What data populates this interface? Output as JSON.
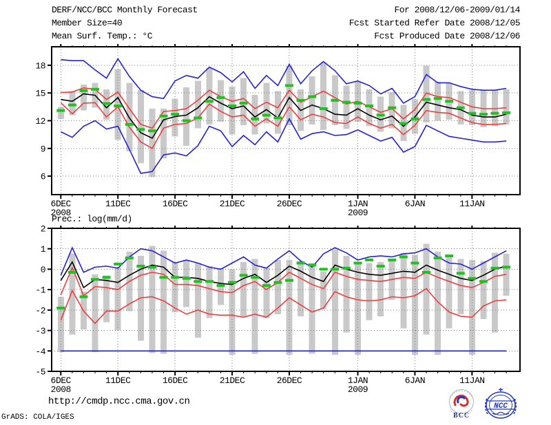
{
  "header": {
    "title": "DERF/NCC/BCC Monthly Forecast",
    "member_size": "Member Size=40",
    "temp_label": "Mean Surf. Temp.: °C",
    "for_range": "For 2008/12/06-2009/01/14",
    "refer_date": "Fcst Started Refer Date 2008/12/05",
    "produced_date": "Fcst Produced Date 2008/12/06"
  },
  "footer": {
    "url": "http://cmdp.ncc.cma.gov.cn",
    "grads_credit": "GrADS: COLA/IGES",
    "bcc_text": "BCC",
    "ncc_text": "NCC"
  },
  "colors": {
    "blue": "#2020dd",
    "red": "#f23c3c",
    "black": "#000000",
    "green": "#22c122",
    "bar": "#c9c9c9",
    "grid": "#7a7a7a",
    "frame": "#000000",
    "logo_blue": "#2238c0",
    "logo_red": "#e02a2a",
    "logo_navy": "#1a2f7a"
  },
  "chart_data": [
    {
      "type": "line",
      "title": "Mean Surf. Temp.: °C",
      "ylabel": "",
      "xlabel": "",
      "grid": true,
      "legend_position": "none",
      "ylim": [
        4,
        20
      ],
      "yticks": [
        6,
        9,
        12,
        15,
        18
      ],
      "xticks": [
        {
          "day": 0,
          "label": "6DEC",
          "year": "2008"
        },
        {
          "day": 5,
          "label": "11DEC"
        },
        {
          "day": 10,
          "label": "16DEC"
        },
        {
          "day": 15,
          "label": "21DEC"
        },
        {
          "day": 20,
          "label": "26DEC"
        },
        {
          "day": 26,
          "label": "1JAN",
          "year": "2009"
        },
        {
          "day": 31,
          "label": "6JAN"
        },
        {
          "day": 36,
          "label": "11JAN"
        }
      ],
      "series": [
        {
          "name": "ensemble-max",
          "color": "blue",
          "values": [
            18.6,
            18.5,
            18.5,
            17.5,
            16.6,
            18.7,
            16.8,
            15.3,
            14.6,
            14.4,
            16.3,
            16.9,
            16.6,
            17.8,
            17.2,
            16.2,
            17.3,
            15.5,
            16.9,
            15.8,
            18.1,
            16.0,
            17.4,
            18.4,
            17.4,
            16.0,
            16.3,
            15.8,
            14.9,
            15.5,
            13.9,
            14.6,
            17.0,
            16.1,
            16.1,
            15.7,
            15.4,
            15.3,
            15.3,
            15.5
          ]
        },
        {
          "name": "ensemble-min",
          "color": "blue",
          "values": [
            10.8,
            10.2,
            11.4,
            12.0,
            11.1,
            11.4,
            8.9,
            6.3,
            6.5,
            8.3,
            8.5,
            8.2,
            9.3,
            11.4,
            10.9,
            9.2,
            10.4,
            9.4,
            10.8,
            9.7,
            12.2,
            10.0,
            10.6,
            10.8,
            10.4,
            10.5,
            11.0,
            10.4,
            9.8,
            10.2,
            8.6,
            9.2,
            11.5,
            10.9,
            10.3,
            10.1,
            9.9,
            9.7,
            9.7,
            9.8
          ]
        },
        {
          "name": "upper-quartile",
          "color": "red",
          "values": [
            15.05,
            15.1,
            15.55,
            15.4,
            14.3,
            15.1,
            13.3,
            11.6,
            11.2,
            13.0,
            13.1,
            13.3,
            14.2,
            15.3,
            14.6,
            14.1,
            14.4,
            13.3,
            14.0,
            13.4,
            15.3,
            14.0,
            14.6,
            15.2,
            14.5,
            13.8,
            14.1,
            13.5,
            12.9,
            13.3,
            12.2,
            13.2,
            15.0,
            14.6,
            14.5,
            14.0,
            13.5,
            13.3,
            13.3,
            13.4
          ]
        },
        {
          "name": "lower-quartile",
          "color": "red",
          "values": [
            13.95,
            12.75,
            13.9,
            13.95,
            12.4,
            13.5,
            11.3,
            9.7,
            9.0,
            11.2,
            11.6,
            11.7,
            12.3,
            13.8,
            13.0,
            12.4,
            12.6,
            11.4,
            12.2,
            11.4,
            13.5,
            12.1,
            12.7,
            12.4,
            11.8,
            11.7,
            12.4,
            11.7,
            11.2,
            11.6,
            10.5,
            11.5,
            13.1,
            12.9,
            12.8,
            12.3,
            11.8,
            11.6,
            11.6,
            11.7
          ]
        },
        {
          "name": "ensemble-median",
          "color": "black",
          "values": [
            14.3,
            14.1,
            14.9,
            14.75,
            13.4,
            14.5,
            12.3,
            10.7,
            10.1,
            12.1,
            12.45,
            12.6,
            13.4,
            14.6,
            13.9,
            13.3,
            13.6,
            12.4,
            13.2,
            12.3,
            14.5,
            13.1,
            13.7,
            13.3,
            12.7,
            12.6,
            13.3,
            12.6,
            12.1,
            12.5,
            11.4,
            12.4,
            14.0,
            13.7,
            13.4,
            13.2,
            12.6,
            12.4,
            12.4,
            12.7
          ]
        }
      ],
      "bars": {
        "name": "ensemble-spread",
        "low": [
          12.2,
          12.6,
          13.1,
          13.4,
          12.1,
          9.9,
          8.7,
          7.4,
          5.9,
          7.9,
          10.3,
          9.3,
          11.2,
          11.6,
          11.9,
          10.5,
          11.5,
          10.5,
          11.7,
          10.6,
          11.5,
          10.9,
          11.6,
          11.0,
          11.5,
          11.1,
          11.9,
          11.4,
          10.8,
          11.2,
          9.8,
          10.6,
          11.8,
          12.0,
          12.1,
          11.6,
          11.5,
          11.3,
          11.4,
          11.6
        ],
        "high": [
          13.5,
          15.2,
          15.9,
          16.1,
          15.4,
          17.6,
          16.1,
          15.3,
          13.3,
          13.3,
          14.4,
          15.6,
          16.3,
          17.7,
          16.4,
          15.7,
          16.6,
          14.8,
          16.1,
          15.2,
          17.9,
          15.4,
          16.8,
          18.3,
          16.9,
          15.8,
          16.2,
          15.4,
          14.6,
          15.1,
          13.7,
          14.3,
          17.95,
          16.2,
          16.1,
          15.2,
          15.3,
          15.3,
          15.3,
          15.4
        ]
      },
      "dashes": {
        "name": "observation",
        "values": [
          13.1,
          13.7,
          15.25,
          15.4,
          13.85,
          13.6,
          11.6,
          11.05,
          10.9,
          12.5,
          12.7,
          12.0,
          12.3,
          14.1,
          14.5,
          13.6,
          13.9,
          12.2,
          12.6,
          12.3,
          15.8,
          14.2,
          14.6,
          13.3,
          14.2,
          14.0,
          13.9,
          13.6,
          12.6,
          13.4,
          11.7,
          12.2,
          14.3,
          14.4,
          14.1,
          13.4,
          12.8,
          12.7,
          12.8,
          12.85
        ]
      }
    },
    {
      "type": "line",
      "title": "Prec.: log(mm/d)",
      "ylabel": "",
      "xlabel": "",
      "grid": true,
      "legend_position": "none",
      "ylim": [
        -5,
        2
      ],
      "yticks": [
        2,
        1,
        0,
        -1,
        -2,
        -3,
        -4,
        -5
      ],
      "xticks": [
        {
          "day": 0,
          "label": "6DEC",
          "year": "2008"
        },
        {
          "day": 5,
          "label": "11DEC"
        },
        {
          "day": 10,
          "label": "16DEC"
        },
        {
          "day": 15,
          "label": "21DEC"
        },
        {
          "day": 20,
          "label": "26DEC"
        },
        {
          "day": 26,
          "label": "1JAN",
          "year": "2009"
        },
        {
          "day": 31,
          "label": "6JAN"
        },
        {
          "day": 36,
          "label": "11JAN"
        }
      ],
      "series": [
        {
          "name": "ensemble-max",
          "color": "blue",
          "values": [
            -0.3,
            1.05,
            -0.15,
            0.1,
            0.15,
            0.05,
            0.6,
            1.0,
            0.9,
            0.6,
            0.3,
            0.45,
            0.3,
            0.1,
            0.0,
            0.3,
            0.6,
            0.2,
            0.05,
            0.5,
            0.9,
            0.4,
            0.1,
            0.75,
            1.05,
            0.8,
            0.45,
            0.6,
            0.65,
            0.6,
            0.75,
            0.8,
            1.0,
            0.6,
            0.3,
            0.25,
            0.0,
            0.3,
            0.6,
            0.9
          ]
        },
        {
          "name": "ensemble-min",
          "color": "blue",
          "values": [
            -4.0,
            -4.0,
            -4.0,
            -4.0,
            -4.0,
            -4.0,
            -4.0,
            -4.0,
            -4.0,
            -4.0,
            -4.0,
            -4.0,
            -4.0,
            -4.0,
            -4.0,
            -4.0,
            -4.0,
            -4.0,
            -4.0,
            -4.0,
            -4.0,
            -4.0,
            -4.0,
            -4.0,
            -4.0,
            -4.0,
            -4.0,
            -4.0,
            -4.0,
            -4.0,
            -4.0,
            -4.0,
            -4.0,
            -4.0,
            -4.0,
            -4.0,
            -4.0,
            -4.0,
            -4.0,
            -4.0
          ]
        },
        {
          "name": "upper-quartile",
          "color": "red",
          "values": [
            -1.25,
            0.08,
            -1.3,
            -0.85,
            -0.9,
            -1.0,
            -0.6,
            -0.3,
            -0.15,
            -0.25,
            -0.75,
            -0.75,
            -0.8,
            -0.95,
            -1.1,
            -1.15,
            -0.8,
            -0.6,
            -1.0,
            -0.65,
            -0.15,
            -0.45,
            -0.75,
            -0.95,
            -0.15,
            -0.35,
            -0.5,
            -0.55,
            -0.6,
            -0.5,
            -0.4,
            -0.45,
            -0.15,
            -0.4,
            -0.6,
            -0.8,
            -0.9,
            -0.65,
            -0.35,
            -0.25
          ]
        },
        {
          "name": "lower-quartile",
          "color": "red",
          "values": [
            -2.5,
            -1.05,
            -2.05,
            -2.65,
            -2.05,
            -2.05,
            -1.7,
            -1.4,
            -1.35,
            -1.55,
            -1.9,
            -2.2,
            -2.0,
            -2.2,
            -2.25,
            -2.25,
            -2.35,
            -2.2,
            -2.35,
            -1.9,
            -1.4,
            -1.75,
            -2.1,
            -1.9,
            -1.1,
            -1.35,
            -1.5,
            -1.55,
            -1.5,
            -1.35,
            -1.4,
            -1.3,
            -0.95,
            -1.6,
            -2.1,
            -2.3,
            -2.35,
            -1.8,
            -1.55,
            -1.5
          ]
        },
        {
          "name": "ensemble-median",
          "color": "black",
          "values": [
            -0.55,
            0.35,
            -0.9,
            -0.5,
            -0.55,
            -0.65,
            -0.3,
            0.0,
            0.2,
            0.1,
            -0.4,
            -0.4,
            -0.45,
            -0.6,
            -0.7,
            -0.75,
            -0.45,
            -0.25,
            -0.65,
            -0.3,
            0.15,
            -0.1,
            -0.4,
            -0.6,
            0.2,
            0.0,
            -0.15,
            -0.25,
            -0.3,
            -0.2,
            -0.1,
            -0.15,
            0.2,
            -0.05,
            -0.25,
            -0.45,
            -0.55,
            -0.3,
            0.0,
            0.15
          ]
        }
      ],
      "bars": {
        "name": "ensemble-spread",
        "low": [
          -4.05,
          -3.2,
          -2.95,
          -4.05,
          -2.6,
          -3.0,
          -2.05,
          -3.5,
          -4.1,
          -4.15,
          -2.1,
          -1.85,
          -3.35,
          -2.4,
          -1.75,
          -4.2,
          -2.3,
          -4.15,
          -2.4,
          -2.2,
          -4.2,
          -2.3,
          -4.15,
          -1.95,
          -4.2,
          -3.1,
          -4.2,
          -2.5,
          -2.3,
          -1.5,
          -2.9,
          -4.2,
          -3.2,
          -4.2,
          -2.9,
          -2.2,
          -4.2,
          -2.45,
          -3.1,
          -1.3
        ],
        "high": [
          -1.35,
          0.78,
          -1.1,
          -0.25,
          -0.3,
          0.1,
          0.85,
          0.65,
          1.15,
          0.9,
          0.35,
          0.45,
          0.3,
          0.15,
          0.05,
          0.0,
          0.35,
          0.5,
          0.1,
          0.45,
          0.45,
          0.4,
          0.3,
          -0.1,
          0.95,
          0.65,
          0.3,
          0.3,
          0.35,
          0.45,
          0.8,
          0.7,
          1.25,
          0.85,
          0.6,
          0.5,
          0.45,
          0.4,
          0.8,
          0.75
        ]
      },
      "dashes": {
        "name": "observation",
        "values": [
          -1.9,
          -0.15,
          -1.35,
          -0.5,
          -0.4,
          0.25,
          0.55,
          0.15,
          0.1,
          -0.4,
          -0.4,
          -0.45,
          -0.6,
          -0.6,
          -0.8,
          -0.65,
          -0.3,
          -0.4,
          -0.8,
          -0.65,
          -0.55,
          0.3,
          0.2,
          0.0,
          0.0,
          0.05,
          0.3,
          0.45,
          0.15,
          0.45,
          0.6,
          0.3,
          -0.15,
          0.55,
          0.65,
          -0.2,
          -0.45,
          -0.6,
          0.05,
          0.1
        ]
      }
    }
  ]
}
